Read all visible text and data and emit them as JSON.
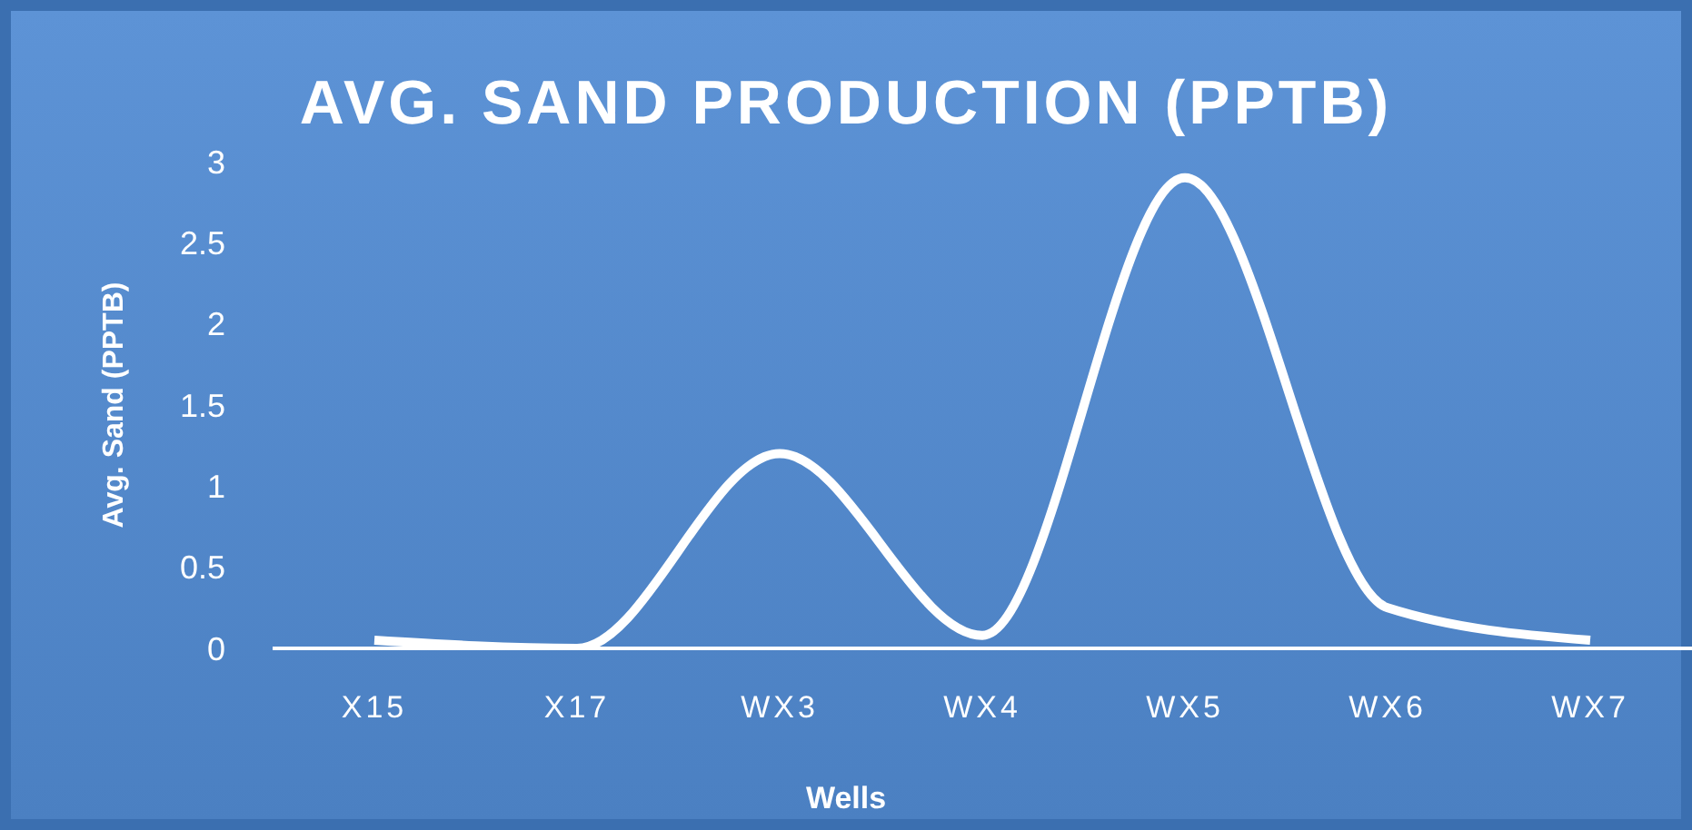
{
  "chart_data": {
    "type": "line",
    "title": "AVG. SAND PRODUCTION (PPTB)",
    "xlabel": "Wells",
    "ylabel": "Avg. Sand (PPTB)",
    "categories": [
      "X15",
      "X17",
      "WX3",
      "WX4",
      "WX5",
      "WX6",
      "WX7"
    ],
    "series": [
      {
        "color": "#ffffff",
        "values": [
          0.05,
          0,
          1.2,
          0.08,
          2.9,
          0.25,
          0.05
        ]
      }
    ],
    "ylim": [
      0,
      3
    ],
    "yticks": [
      0,
      0.5,
      1,
      1.5,
      2,
      2.5,
      3
    ],
    "grid": false,
    "legend": false,
    "marker": "none",
    "line_style": "solid"
  }
}
